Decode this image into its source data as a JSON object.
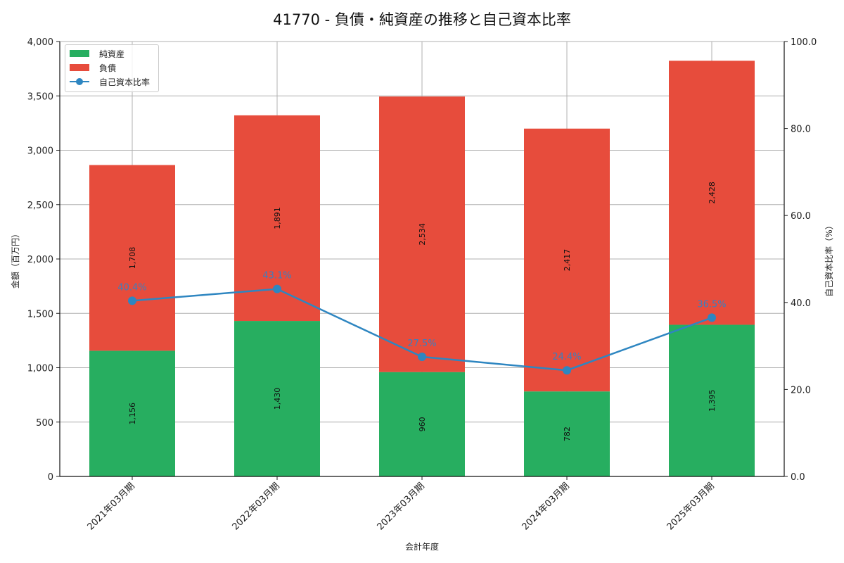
{
  "title": "41770 - 負債・純資産の推移と自己資本比率",
  "colors": {
    "net_assets": "#27ae60",
    "liabilities": "#e74c3c",
    "ratio": "#2e86c1"
  },
  "legend": {
    "items": [
      "純資産",
      "負債",
      "自己資本比率"
    ]
  },
  "chart_data": {
    "type": "bar",
    "stacked": true,
    "title": "41770 - 負債・純資産の推移と自己資本比率",
    "xlabel": "会計年度",
    "ylabel": "金額（百万円）",
    "y2label": "自己資本比率（%）",
    "categories": [
      "2021年03月期",
      "2022年03月期",
      "2023年03月期",
      "2024年03月期",
      "2025年03月期"
    ],
    "series": [
      {
        "name": "純資産",
        "type": "bar",
        "values": [
          1156,
          1430,
          960,
          782,
          1395
        ],
        "labels": [
          "1,156",
          "1,430",
          "960",
          "782",
          "1,395"
        ]
      },
      {
        "name": "負債",
        "type": "bar",
        "values": [
          1708,
          1891,
          2534,
          2417,
          2428
        ],
        "labels": [
          "1,708",
          "1,891",
          "2,534",
          "2,417",
          "2,428"
        ]
      },
      {
        "name": "自己資本比率",
        "type": "line",
        "axis": "right",
        "values": [
          40.4,
          43.1,
          27.5,
          24.4,
          36.5
        ],
        "labels": [
          "40.4%",
          "43.1%",
          "27.5%",
          "24.4%",
          "36.5%"
        ]
      }
    ],
    "ylim": [
      0,
      4000
    ],
    "yticks": [
      "0",
      "500",
      "1,000",
      "1,500",
      "2,000",
      "2,500",
      "3,000",
      "3,500",
      "4,000"
    ],
    "y2lim": [
      0,
      100
    ],
    "y2ticks": [
      "0.0",
      "20.0",
      "40.0",
      "60.0",
      "80.0",
      "100.0"
    ],
    "grid": true,
    "legend_position": "upper left"
  }
}
